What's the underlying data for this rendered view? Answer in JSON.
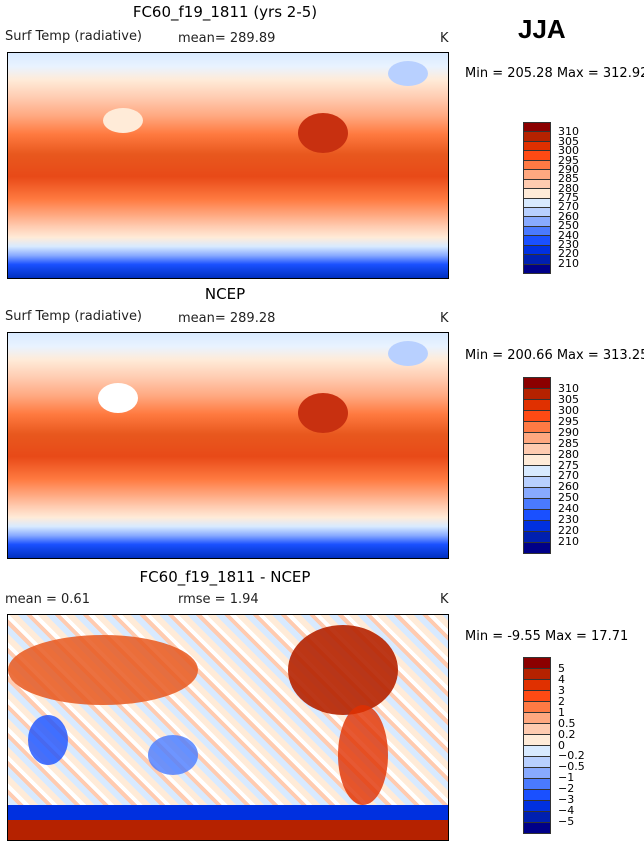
{
  "season": "JJA",
  "panels": [
    {
      "title": "FC60_f19_1811 (yrs 2-5)",
      "variable": "Surf Temp (radiative)",
      "stat": "mean= 289.89",
      "units": "K",
      "minmax": "Min = 205.28 Max = 312.92"
    },
    {
      "title": "NCEP",
      "variable": "Surf Temp (radiative)",
      "stat": "mean= 289.28",
      "units": "K",
      "minmax": "Min = 200.66 Max = 313.25"
    },
    {
      "title": "FC60_f19_1811 - NCEP",
      "mean": "mean =   0.61",
      "rmse": "rmse =   1.94",
      "units": "K",
      "minmax": "Min =  -9.55 Max =  17.71"
    }
  ],
  "colorbar_abs": {
    "labels": [
      "310",
      "305",
      "300",
      "295",
      "290",
      "285",
      "280",
      "275",
      "270",
      "260",
      "250",
      "240",
      "230",
      "220",
      "210"
    ],
    "colors": [
      "#8b0000",
      "#b52200",
      "#e03000",
      "#ff4a14",
      "#ff7a44",
      "#ffa880",
      "#ffcbb0",
      "#ffebd8",
      "#d8eaff",
      "#b8d0ff",
      "#88aaff",
      "#4a7aff",
      "#1a50ff",
      "#0030e0",
      "#0020b0",
      "#000088"
    ]
  },
  "colorbar_diff": {
    "labels": [
      "5",
      "4",
      "3",
      "2",
      "1",
      "0.5",
      "0.2",
      "0",
      "−0.2",
      "−0.5",
      "−1",
      "−2",
      "−3",
      "−4",
      "−5"
    ],
    "colors": [
      "#8b0000",
      "#b52200",
      "#e03000",
      "#ff4a14",
      "#ff7a44",
      "#ffa880",
      "#ffcbb0",
      "#ffebd8",
      "#d8eaff",
      "#b8d0ff",
      "#88aaff",
      "#4a7aff",
      "#1a50ff",
      "#0030e0",
      "#0020b0",
      "#000088"
    ]
  }
}
